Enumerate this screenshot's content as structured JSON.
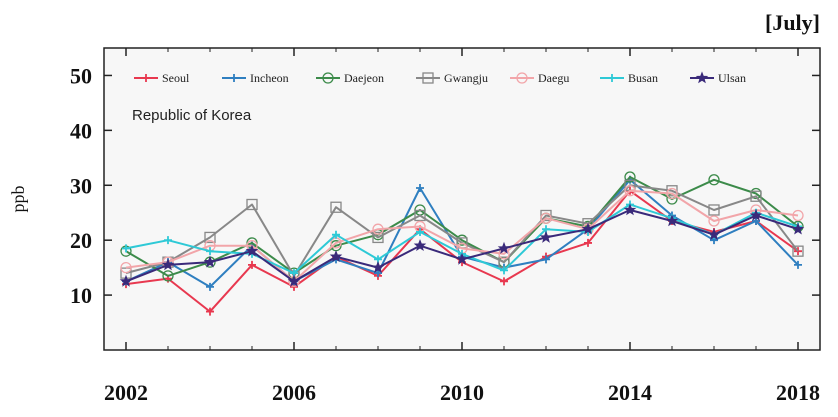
{
  "chart_data": {
    "type": "line",
    "title": "[July]",
    "annotation": "Republic of Korea",
    "xlabel": "",
    "ylabel": "ppb",
    "xlim": [
      2002,
      2018
    ],
    "ylim": [
      0,
      55
    ],
    "x_ticks": [
      2002,
      2006,
      2010,
      2014,
      2018
    ],
    "y_ticks": [
      10,
      20,
      30,
      40,
      50
    ],
    "grid": false,
    "legend_position": "top",
    "x": [
      2002,
      2003,
      2004,
      2005,
      2006,
      2007,
      2008,
      2009,
      2010,
      2011,
      2012,
      2013,
      2014,
      2015,
      2016,
      2017,
      2018
    ],
    "series": [
      {
        "name": "Seoul",
        "color": "#e8384f",
        "marker": "plus",
        "values": [
          12,
          13,
          7,
          15.5,
          11.5,
          17,
          13.5,
          22,
          16,
          12.5,
          17,
          19.5,
          29,
          23.5,
          21.5,
          23.5,
          18
        ]
      },
      {
        "name": "Incheon",
        "color": "#2f7fc0",
        "marker": "plus",
        "values": [
          12.5,
          16,
          11.5,
          19,
          12.5,
          16.5,
          14,
          29.5,
          17,
          15,
          16.5,
          22,
          31,
          24.5,
          20,
          23.5,
          15.5
        ]
      },
      {
        "name": "Daejeon",
        "color": "#3c8b4a",
        "marker": "circle",
        "values": [
          18,
          13.5,
          16,
          19.5,
          14,
          19,
          21,
          25.5,
          20,
          16,
          24,
          22.5,
          31.5,
          27.5,
          31,
          28.5,
          22.5
        ]
      },
      {
        "name": "Gwangju",
        "color": "#888888",
        "marker": "square",
        "values": [
          14,
          16,
          20.5,
          26.5,
          13.5,
          26,
          20.5,
          24.5,
          19.5,
          16,
          24.5,
          23,
          30,
          29,
          25.5,
          28,
          18
        ]
      },
      {
        "name": "Daegu",
        "color": "#f2a5a9",
        "marker": "circle",
        "values": [
          15,
          16,
          19,
          19,
          12.5,
          19.5,
          22,
          22.5,
          18.5,
          17.5,
          24,
          22,
          29,
          28.5,
          23.5,
          25.5,
          24.5
        ]
      },
      {
        "name": "Busan",
        "color": "#2ec9d6",
        "marker": "plus",
        "values": [
          18.5,
          20,
          18,
          17.5,
          14,
          21,
          16.5,
          21.5,
          17.5,
          14.5,
          22,
          21.5,
          26.5,
          24,
          21,
          25,
          22.5
        ]
      },
      {
        "name": "Ulsan",
        "color": "#3a2a7a",
        "marker": "star",
        "values": [
          12.5,
          15.5,
          16,
          18,
          12.5,
          17,
          15,
          19,
          16.5,
          18.5,
          20.5,
          22,
          25.5,
          23.5,
          21,
          24.5,
          22
        ]
      }
    ]
  }
}
